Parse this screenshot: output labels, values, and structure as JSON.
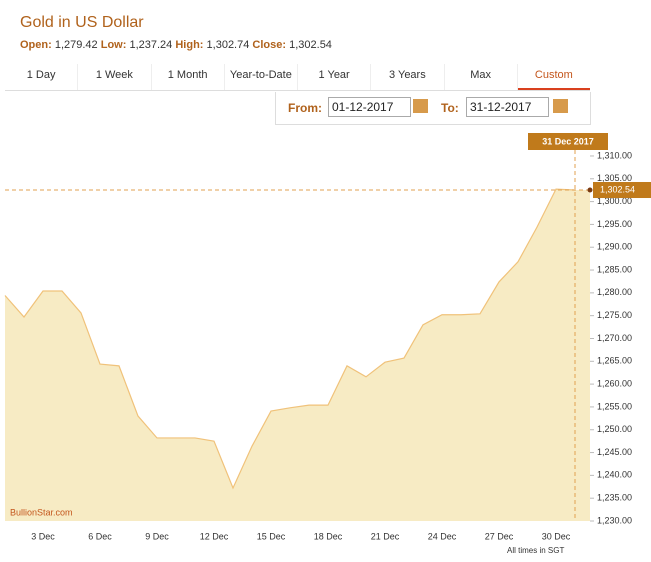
{
  "header": {
    "title": "Gold in US Dollar",
    "stats": [
      {
        "label": "Open:",
        "value": "1,279.42"
      },
      {
        "label": "Low:",
        "value": "1,237.24"
      },
      {
        "label": "High:",
        "value": "1,302.74"
      },
      {
        "label": "Close:",
        "value": "1,302.54"
      }
    ]
  },
  "tabs": [
    "1 Day",
    "1 Week",
    "1 Month",
    "Year-to-Date",
    "1 Year",
    "3 Years",
    "Max",
    "Custom"
  ],
  "date_range": {
    "from_label": "From:",
    "from": "01-12-2017",
    "to_label": "To:",
    "to": "31-12-2017"
  },
  "chart_data": {
    "type": "area",
    "categories": [
      null,
      null,
      "3 Dec",
      null,
      null,
      "6 Dec",
      null,
      null,
      "9 Dec",
      null,
      null,
      "12 Dec",
      null,
      null,
      "15 Dec",
      null,
      null,
      "18 Dec",
      null,
      null,
      "21 Dec",
      null,
      null,
      "24 Dec",
      null,
      null,
      "27 Dec",
      null,
      null,
      "30 Dec",
      null
    ],
    "values": [
      1279.42,
      1274.7,
      1280.4,
      1280.4,
      1275.6,
      1264.4,
      1264.0,
      1253.0,
      1248.2,
      1248.2,
      1248.2,
      1247.5,
      1237.24,
      1246.4,
      1254.1,
      1254.8,
      1255.4,
      1255.4,
      1264.0,
      1261.6,
      1264.8,
      1265.7,
      1273.0,
      1275.2,
      1275.2,
      1275.4,
      1282.4,
      1286.8,
      1294.4,
      1302.74,
      1302.54
    ],
    "color": "#f7ebc4",
    "line_color": "#f0c27a",
    "ylim": [
      1230,
      1313.5
    ],
    "yticks": [
      {
        "value": 1230,
        "label": "1,230.00"
      },
      {
        "value": 1235,
        "label": "1,235.00"
      },
      {
        "value": 1240,
        "label": "1,240.00"
      },
      {
        "value": 1245,
        "label": "1,245.00"
      },
      {
        "value": 1250,
        "label": "1,250.00"
      },
      {
        "value": 1255,
        "label": "1,255.00"
      },
      {
        "value": 1260,
        "label": "1,260.00"
      },
      {
        "value": 1265,
        "label": "1,265.00"
      },
      {
        "value": 1270,
        "label": "1,270.00"
      },
      {
        "value": 1275,
        "label": "1,275.00"
      },
      {
        "value": 1280,
        "label": "1,280.00"
      },
      {
        "value": 1285,
        "label": "1,285.00"
      },
      {
        "value": 1290,
        "label": "1,290.00"
      },
      {
        "value": 1295,
        "label": "1,295.00"
      },
      {
        "value": 1300,
        "label": "1,300.00"
      },
      {
        "value": 1305,
        "label": "1,305.00"
      },
      {
        "value": 1310,
        "label": "1,310.00"
      }
    ],
    "crosshair_label": "31 Dec 2017",
    "close_label": "1,302.54",
    "watermark": "BullionStar.com",
    "note": "All times in SGT"
  }
}
